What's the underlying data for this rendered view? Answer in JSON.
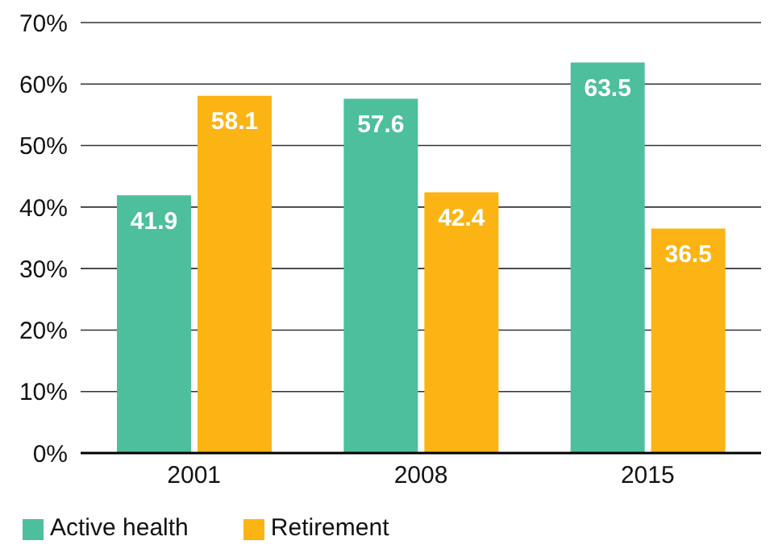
{
  "chart_data": {
    "type": "bar",
    "categories": [
      "2001",
      "2008",
      "2015"
    ],
    "series": [
      {
        "name": "Active health",
        "color": "#4dbf9d",
        "values": [
          41.9,
          57.6,
          63.5
        ]
      },
      {
        "name": "Retirement",
        "color": "#fbb414",
        "values": [
          58.1,
          42.4,
          36.5
        ]
      }
    ],
    "ylim": [
      0,
      70
    ],
    "yticks": [
      {
        "value": 0,
        "label": "0%"
      },
      {
        "value": 10,
        "label": "10%"
      },
      {
        "value": 20,
        "label": "20%"
      },
      {
        "value": 30,
        "label": "30%"
      },
      {
        "value": 40,
        "label": "40%"
      },
      {
        "value": 50,
        "label": "50%"
      },
      {
        "value": 60,
        "label": "60%"
      },
      {
        "value": 70,
        "label": "70%"
      }
    ],
    "grid": "y",
    "legend": "bottom left",
    "data_labels": true
  }
}
